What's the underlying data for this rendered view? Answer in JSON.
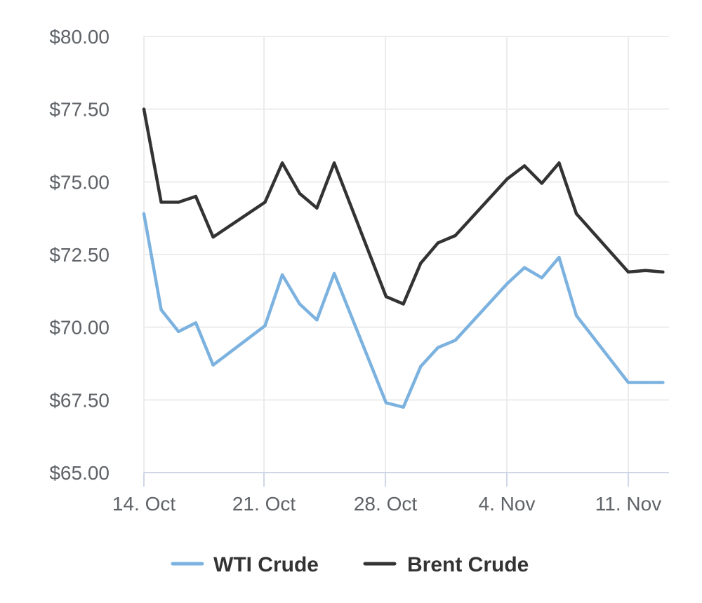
{
  "chart_data": {
    "type": "line",
    "title": "",
    "xlabel": "",
    "ylabel": "",
    "x_tick_labels": [
      "14. Oct",
      "21. Oct",
      "28. Oct",
      "4. Nov",
      "11. Nov"
    ],
    "y_tick_labels": [
      "$65.00",
      "$67.50",
      "$70.00",
      "$72.50",
      "$75.00",
      "$77.50",
      "$80.00"
    ],
    "ylim": [
      65,
      80
    ],
    "grid": true,
    "legend_position": "bottom",
    "x": [
      "2019-10-14",
      "2019-10-15",
      "2019-10-16",
      "2019-10-17",
      "2019-10-18",
      "2019-10-21",
      "2019-10-22",
      "2019-10-23",
      "2019-10-24",
      "2019-10-25",
      "2019-10-28",
      "2019-10-29",
      "2019-10-30",
      "2019-10-31",
      "2019-11-01",
      "2019-11-04",
      "2019-11-05",
      "2019-11-06",
      "2019-11-07",
      "2019-11-08",
      "2019-11-11",
      "2019-11-12",
      "2019-11-13"
    ],
    "series": [
      {
        "name": "WTI Crude",
        "color": "#7cb2df",
        "values": [
          73.9,
          70.6,
          69.85,
          70.15,
          68.7,
          70.05,
          71.8,
          70.8,
          70.25,
          71.85,
          67.4,
          67.25,
          68.65,
          69.3,
          69.55,
          71.5,
          72.05,
          71.7,
          72.4,
          70.4,
          68.1,
          68.1,
          68.1
        ]
      },
      {
        "name": "Brent Crude",
        "color": "#333333",
        "values": [
          77.5,
          74.3,
          74.3,
          74.5,
          73.1,
          74.3,
          75.65,
          74.6,
          74.1,
          75.65,
          71.05,
          70.8,
          72.2,
          72.9,
          73.15,
          75.1,
          75.55,
          74.95,
          75.65,
          73.9,
          71.9,
          71.95,
          71.9
        ]
      }
    ]
  }
}
